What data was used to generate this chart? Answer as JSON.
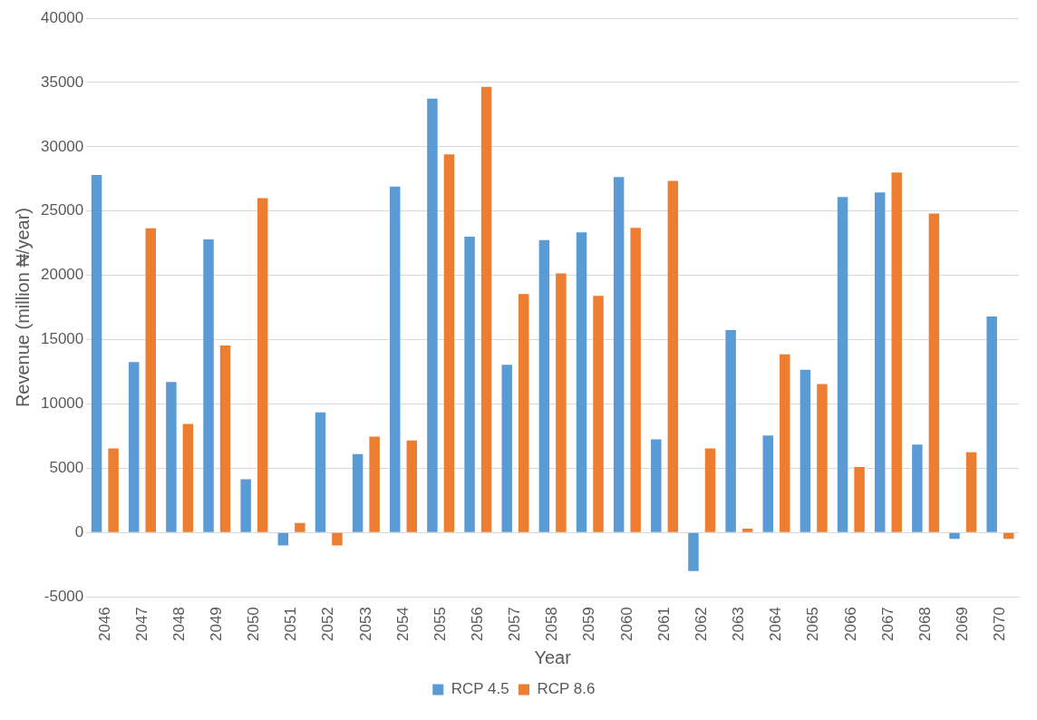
{
  "chart_data": {
    "type": "bar",
    "xlabel": "Year",
    "ylabel": "Revenue (million ₦/year)",
    "categories": [
      "2046",
      "2047",
      "2048",
      "2049",
      "2050",
      "2051",
      "2052",
      "2053",
      "2054",
      "2055",
      "2056",
      "2057",
      "2058",
      "2059",
      "2060",
      "2061",
      "2062",
      "2063",
      "2064",
      "2065",
      "2066",
      "2067",
      "2068",
      "2069",
      "2070"
    ],
    "series": [
      {
        "name": "RCP 4.5",
        "color": "#5b9bd5",
        "values": [
          27800,
          13250,
          11700,
          22800,
          4150,
          -1000,
          9350,
          6100,
          26900,
          33750,
          23000,
          13050,
          22750,
          23350,
          27650,
          7250,
          -3000,
          15750,
          7550,
          12650,
          26100,
          26450,
          6850,
          -500,
          16800
        ]
      },
      {
        "name": "RCP 8.6",
        "color": "#ed7d31",
        "values": [
          6550,
          23650,
          8450,
          14550,
          26000,
          750,
          -1000,
          7450,
          7150,
          29400,
          34650,
          18550,
          20150,
          18400,
          23700,
          27350,
          6550,
          300,
          13850,
          11550,
          5100,
          28000,
          24800,
          6250,
          -500
        ]
      }
    ],
    "ylim": [
      -5000,
      40000
    ],
    "yticks": [
      -5000,
      0,
      5000,
      10000,
      15000,
      20000,
      25000,
      30000,
      35000,
      40000
    ],
    "grid": "y",
    "legend": "bottom"
  }
}
